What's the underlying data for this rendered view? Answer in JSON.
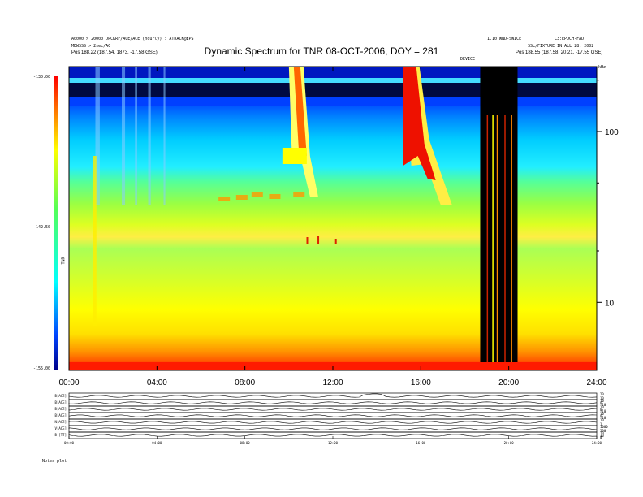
{
  "header": {
    "title": "Dynamic Spectrum for TNR 08-OCT-2006, DOY = 281",
    "left_meta": [
      "A0000 > 20000 DPCKRF/ACE/ACE (hourly) : ATRACK@EPS",
      "MEWSSS > 2sec/AC",
      "Pos    188.22 (187.54, 1873, -17.58 GSE)"
    ],
    "right_meta": [
      "1.10 WND-SWICE",
      "SSL/FIXTURE IN ALL 28, 2002",
      "Pos    188.55 (187.58, 20.21, -17.55 GSE)"
    ],
    "right_corner": "L3:EPOCH-FAD",
    "event_marker": "DEVICE",
    "unit_mark": "kHz"
  },
  "colorbar": {
    "ticks": [
      "-130.00",
      "-142.50",
      "-155.00"
    ],
    "label": "TNR"
  },
  "chart_data": {
    "type": "heatmap",
    "title": "Dynamic Spectrum for TNR 08-OCT-2006, DOY = 281",
    "x_axis": {
      "range_hours": [
        0,
        24
      ],
      "ticks": [
        "00:00",
        "04:00",
        "08:00",
        "12:00",
        "16:00",
        "20:00",
        "24:00"
      ]
    },
    "y_axis": {
      "scale": "log",
      "unit": "kHz",
      "range": [
        4,
        240
      ],
      "ticks": [
        "100",
        "10"
      ]
    },
    "colorbar_range": [
      -155.0,
      -130.0
    ],
    "colorbar_label": "TNR",
    "features": {
      "type_iii_bursts_start_hours": [
        10.0,
        15.2
      ],
      "data_gap_hours": [
        18.7,
        20.4
      ]
    },
    "panels": [
      {
        "label": "B[ACE]",
        "ticks": [
          "20",
          "10"
        ]
      },
      {
        "label": "B[ACE]",
        "ticks": [
          "10",
          "0",
          "-10"
        ]
      },
      {
        "label": "B[ACE]",
        "ticks": [
          "10",
          "0",
          "-10"
        ]
      },
      {
        "label": "B[ACE]",
        "ticks": [
          "10",
          "0",
          "-10"
        ]
      },
      {
        "label": "N[ACE]",
        "ticks": [
          "10",
          "1"
        ]
      },
      {
        "label": "V[ACE]",
        "ticks": [
          "1000",
          "500"
        ]
      },
      {
        "label": "|B|[TT]",
        "ticks": [
          "20",
          "10",
          "0"
        ]
      }
    ],
    "panel_x_ticks": [
      "00:00",
      "04:00",
      "08:00",
      "12:00",
      "16:00",
      "20:00",
      "24:00"
    ]
  },
  "footer": {
    "label": "Notes   plot"
  },
  "colors": {
    "spectrum_floor": "#ff2200",
    "spectrum_low": "#ffff00",
    "spectrum_mid": "#55ff55",
    "spectrum_cyan": "#22eeff",
    "spectrum_blue": "#0022ff",
    "spectrum_black": "#000000"
  }
}
